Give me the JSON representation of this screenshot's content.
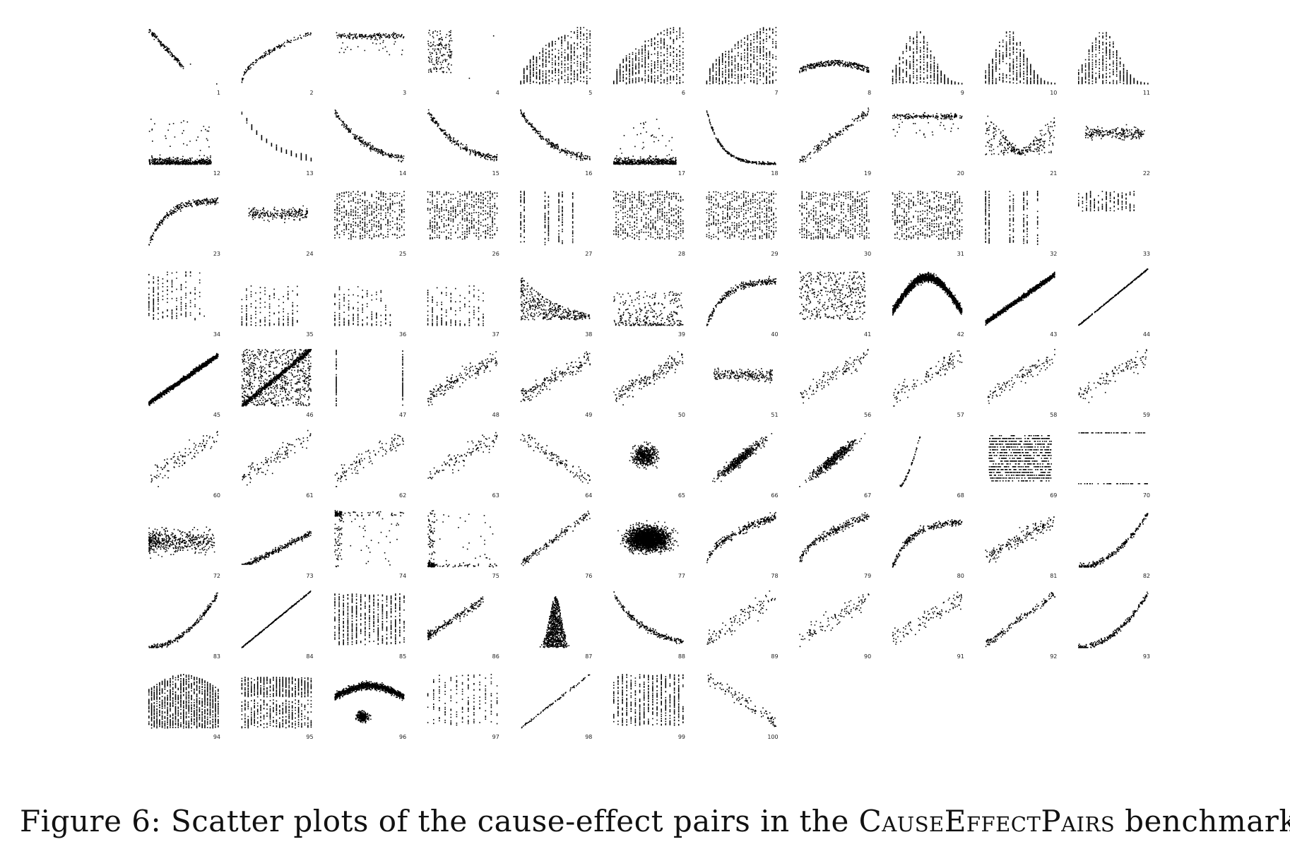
{
  "figure": {
    "caption_prefix": "Figure 6: Scatter plots of the cause-effect pairs in the",
    "caption_benchmark": "CauseEffectPairs",
    "caption_suffix": "benchmark"
  },
  "chart_data": {
    "type": "scatter",
    "layout": "small-multiples",
    "rows": 9,
    "columns": 11,
    "axes_visible": false,
    "grid": false,
    "panel_labels": [
      "1",
      "2",
      "3",
      "4",
      "5",
      "6",
      "7",
      "8",
      "9",
      "10",
      "11",
      "12",
      "13",
      "14",
      "15",
      "16",
      "17",
      "18",
      "19",
      "20",
      "21",
      "22",
      "23",
      "24",
      "25",
      "26",
      "27",
      "28",
      "29",
      "30",
      "31",
      "32",
      "33",
      "34",
      "35",
      "36",
      "37",
      "38",
      "39",
      "40",
      "41",
      "42",
      "43",
      "44",
      "45",
      "46",
      "47",
      "48",
      "49",
      "50",
      "51",
      "56",
      "57",
      "58",
      "59",
      "60",
      "61",
      "62",
      "63",
      "64",
      "65",
      "66",
      "67",
      "68",
      "69",
      "70",
      "72",
      "73",
      "74",
      "75",
      "76",
      "77",
      "78",
      "79",
      "80",
      "81",
      "82",
      "83",
      "84",
      "85",
      "86",
      "87",
      "88",
      "89",
      "90",
      "91",
      "92",
      "93",
      "94",
      "95",
      "96",
      "97",
      "98",
      "99",
      "100"
    ],
    "panel_patterns": {
      "1": "neg-linear",
      "2": "pos-concave-tight",
      "3": "flat-band-top",
      "4": "vertical-cluster",
      "5": "columns-rise",
      "6": "columns-rise",
      "7": "columns-rise",
      "8": "thin-arc",
      "9": "columns-hump",
      "10": "columns-hump",
      "11": "columns-hump",
      "12": "floor-cloud",
      "13": "decay-columns",
      "14": "decay",
      "15": "decay",
      "16": "decay",
      "17": "floor-cloud",
      "18": "decay-sharp",
      "19": "pos-linear",
      "20": "flat-band-top",
      "21": "v-shape",
      "22": "flat-band",
      "23": "rise-plateau",
      "24": "flat-band",
      "25": "dense-columns",
      "26": "dense-columns",
      "27": "sparse-columns",
      "28": "dense-columns",
      "29": "dense-columns",
      "30": "dense-columns",
      "31": "dense-columns",
      "32": "sparse-columns",
      "33": "columns-top",
      "34": "columns-left",
      "35": "columns-floor",
      "36": "columns-floor",
      "37": "columns-floor",
      "38": "cloud-decay",
      "39": "cloud-floor",
      "40": "rise-plateau",
      "41": "cloud",
      "42": "arch-thick",
      "43": "pos-linear-thick",
      "44": "pos-linear-thin",
      "45": "pos-linear-thick",
      "46": "box-diagonal",
      "47": "two-columns",
      "48": "pos-linear-wide",
      "49": "pos-linear-wide",
      "50": "pos-linear-wide",
      "51": "flat-band",
      "56": "pos-linear-sparse",
      "57": "pos-linear-sparse",
      "58": "pos-linear-sparse",
      "59": "pos-linear-sparse",
      "60": "pos-linear-sparse",
      "61": "pos-linear-sparse",
      "62": "pos-linear-sparse",
      "63": "pos-linear-sparse",
      "64": "neg-linear-sparse",
      "65": "blob",
      "66": "pos-linear-blob",
      "67": "pos-linear-blob",
      "68": "steep-rise",
      "69": "horizontal-lines",
      "70": "two-rows",
      "72": "cloud-left",
      "73": "pos-linear-floor",
      "74": "corner-L-top",
      "75": "corner-L-bottom",
      "76": "pos-linear",
      "77": "dense-blob",
      "78": "pos-concave",
      "79": "pos-concave",
      "80": "rise-plateau",
      "81": "pos-linear-wide",
      "82": "convex-rise",
      "83": "convex-rise",
      "84": "pos-linear-thin",
      "85": "columns-full",
      "86": "pos-linear-cluster",
      "87": "peak",
      "88": "decay",
      "89": "pos-linear-sparse",
      "90": "pos-linear-sparse",
      "91": "pos-linear-sparse",
      "92": "pos-linear",
      "93": "convex-rise",
      "94": "columns-arch",
      "95": "columns-wave",
      "96": "banana-blob",
      "97": "columns-sparse",
      "98": "pos-linear-dotted",
      "99": "columns-full",
      "100": "neg-linear-sparse"
    }
  }
}
